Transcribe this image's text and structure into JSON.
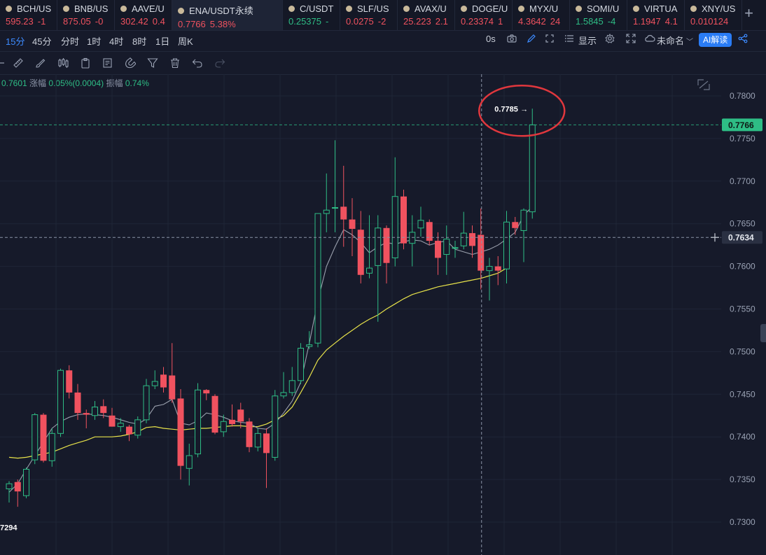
{
  "tickers": [
    {
      "symbol": "BCH/US",
      "price": "595.23",
      "change": "-1",
      "dir": "down"
    },
    {
      "symbol": "BNB/US",
      "price": "875.05",
      "change": "-0",
      "dir": "down"
    },
    {
      "symbol": "AAVE/U",
      "price": "302.42",
      "change": "0.4",
      "dir": "down"
    },
    {
      "symbol": "ENA/USDT永续",
      "price": "0.7766",
      "change": "5.38%",
      "dir": "down",
      "active": true
    },
    {
      "symbol": "C/USDT",
      "price": "0.25375",
      "change": "-",
      "dir": "up"
    },
    {
      "symbol": "SLF/US",
      "price": "0.0275",
      "change": "-2",
      "dir": "down"
    },
    {
      "symbol": "AVAX/U",
      "price": "25.223",
      "change": "2.1",
      "dir": "down"
    },
    {
      "symbol": "DOGE/U",
      "price": "0.23374",
      "change": "1",
      "dir": "down"
    },
    {
      "symbol": "MYX/U",
      "price": "4.3642",
      "change": "24",
      "dir": "down"
    },
    {
      "symbol": "SOMI/U",
      "price": "1.5845",
      "change": "-4",
      "dir": "up"
    },
    {
      "symbol": "VIRTUA",
      "price": "1.1947",
      "change": "4.1",
      "dir": "down"
    },
    {
      "symbol": "XNY/US",
      "price": "0.010124",
      "change": "",
      "dir": "down"
    }
  ],
  "intervals": [
    "15分",
    "45分",
    "分时",
    "1时",
    "4时",
    "8时",
    "1日",
    "周K"
  ],
  "selected_interval": "15分",
  "toolbar_right": {
    "countdown": "0s",
    "display": "显示",
    "layout_name": "未命名",
    "ai_label": "AI解读"
  },
  "info": {
    "prev": "0.7601",
    "change_label": "涨幅",
    "change_value": "0.05%(0.0004)",
    "amp_label": "振幅",
    "amp_value": "0.74%"
  },
  "chart_data": {
    "type": "candlestick",
    "symbol": "ENA/USDT",
    "interval": "15m",
    "y_ticks": [
      "0.7800",
      "0.7750",
      "0.7700",
      "0.7650",
      "0.7600",
      "0.7550",
      "0.7500",
      "0.7450",
      "0.7400",
      "0.7350",
      "0.7300"
    ],
    "ylim": [
      0.728,
      0.781
    ],
    "current_price": "0.7766",
    "crosshair_price": "0.7634",
    "high_label": "0.7785",
    "low_label": "7294",
    "colors": {
      "up": "#2ebd85",
      "down": "#f0525f",
      "ma_fast": "#9aa0ad",
      "ma_slow": "#e7e24a",
      "highlight": "#e0373d"
    },
    "candles": [
      {
        "o": 0.7339,
        "h": 0.7348,
        "l": 0.7323,
        "c": 0.7345
      },
      {
        "o": 0.7347,
        "h": 0.735,
        "l": 0.7318,
        "c": 0.7336
      },
      {
        "o": 0.7331,
        "h": 0.7364,
        "l": 0.7328,
        "c": 0.7362
      },
      {
        "o": 0.7373,
        "h": 0.7428,
        "l": 0.7368,
        "c": 0.7426
      },
      {
        "o": 0.7426,
        "h": 0.7428,
        "l": 0.737,
        "c": 0.7372
      },
      {
        "o": 0.7372,
        "h": 0.741,
        "l": 0.7365,
        "c": 0.7404
      },
      {
        "o": 0.7404,
        "h": 0.748,
        "l": 0.74,
        "c": 0.7478
      },
      {
        "o": 0.7478,
        "h": 0.7484,
        "l": 0.7445,
        "c": 0.7452
      },
      {
        "o": 0.7452,
        "h": 0.7462,
        "l": 0.742,
        "c": 0.7428
      },
      {
        "o": 0.7428,
        "h": 0.7432,
        "l": 0.741,
        "c": 0.7426
      },
      {
        "o": 0.7425,
        "h": 0.7442,
        "l": 0.742,
        "c": 0.7435
      },
      {
        "o": 0.7436,
        "h": 0.7444,
        "l": 0.7422,
        "c": 0.7428
      },
      {
        "o": 0.7425,
        "h": 0.7434,
        "l": 0.7412,
        "c": 0.7412
      },
      {
        "o": 0.7412,
        "h": 0.7422,
        "l": 0.7406,
        "c": 0.7416
      },
      {
        "o": 0.7412,
        "h": 0.7414,
        "l": 0.7395,
        "c": 0.7403
      },
      {
        "o": 0.7402,
        "h": 0.7424,
        "l": 0.7398,
        "c": 0.742
      },
      {
        "o": 0.742,
        "h": 0.7468,
        "l": 0.7416,
        "c": 0.746
      },
      {
        "o": 0.746,
        "h": 0.7478,
        "l": 0.7456,
        "c": 0.7465
      },
      {
        "o": 0.7473,
        "h": 0.7482,
        "l": 0.7452,
        "c": 0.7458
      },
      {
        "o": 0.7472,
        "h": 0.751,
        "l": 0.744,
        "c": 0.7444
      },
      {
        "o": 0.7445,
        "h": 0.7456,
        "l": 0.735,
        "c": 0.7366
      },
      {
        "o": 0.7363,
        "h": 0.7392,
        "l": 0.7343,
        "c": 0.7378
      },
      {
        "o": 0.738,
        "h": 0.7463,
        "l": 0.7376,
        "c": 0.7455
      },
      {
        "o": 0.7455,
        "h": 0.7456,
        "l": 0.7443,
        "c": 0.7451
      },
      {
        "o": 0.7448,
        "h": 0.745,
        "l": 0.7403,
        "c": 0.7405
      },
      {
        "o": 0.7406,
        "h": 0.7426,
        "l": 0.74,
        "c": 0.7418
      },
      {
        "o": 0.742,
        "h": 0.7438,
        "l": 0.7412,
        "c": 0.7415
      },
      {
        "o": 0.7432,
        "h": 0.744,
        "l": 0.741,
        "c": 0.7418
      },
      {
        "o": 0.7418,
        "h": 0.7422,
        "l": 0.7382,
        "c": 0.7388
      },
      {
        "o": 0.7388,
        "h": 0.741,
        "l": 0.7383,
        "c": 0.7404
      },
      {
        "o": 0.7404,
        "h": 0.741,
        "l": 0.734,
        "c": 0.7381
      },
      {
        "o": 0.7376,
        "h": 0.7455,
        "l": 0.7372,
        "c": 0.7448
      },
      {
        "o": 0.7448,
        "h": 0.7476,
        "l": 0.7445,
        "c": 0.7452
      },
      {
        "o": 0.7452,
        "h": 0.7482,
        "l": 0.7448,
        "c": 0.7466
      },
      {
        "o": 0.7466,
        "h": 0.751,
        "l": 0.7462,
        "c": 0.7504
      },
      {
        "o": 0.7506,
        "h": 0.7524,
        "l": 0.7503,
        "c": 0.7508
      },
      {
        "o": 0.751,
        "h": 0.766,
        "l": 0.7505,
        "c": 0.7662
      },
      {
        "o": 0.7662,
        "h": 0.7709,
        "l": 0.764,
        "c": 0.7666
      },
      {
        "o": 0.7669,
        "h": 0.7748,
        "l": 0.764,
        "c": 0.7669
      },
      {
        "o": 0.767,
        "h": 0.7718,
        "l": 0.7623,
        "c": 0.7655
      },
      {
        "o": 0.7655,
        "h": 0.768,
        "l": 0.7612,
        "c": 0.7644
      },
      {
        "o": 0.7643,
        "h": 0.7665,
        "l": 0.758,
        "c": 0.759
      },
      {
        "o": 0.7592,
        "h": 0.766,
        "l": 0.7586,
        "c": 0.7598
      },
      {
        "o": 0.7601,
        "h": 0.766,
        "l": 0.7535,
        "c": 0.7645
      },
      {
        "o": 0.7645,
        "h": 0.7648,
        "l": 0.758,
        "c": 0.7604
      },
      {
        "o": 0.761,
        "h": 0.7728,
        "l": 0.76,
        "c": 0.7682
      },
      {
        "o": 0.7682,
        "h": 0.769,
        "l": 0.762,
        "c": 0.7627
      },
      {
        "o": 0.7627,
        "h": 0.766,
        "l": 0.76,
        "c": 0.764
      },
      {
        "o": 0.7645,
        "h": 0.767,
        "l": 0.7635,
        "c": 0.7654
      },
      {
        "o": 0.7652,
        "h": 0.7655,
        "l": 0.7625,
        "c": 0.763
      },
      {
        "o": 0.763,
        "h": 0.764,
        "l": 0.759,
        "c": 0.761
      },
      {
        "o": 0.7614,
        "h": 0.7648,
        "l": 0.759,
        "c": 0.7632
      },
      {
        "o": 0.7622,
        "h": 0.763,
        "l": 0.761,
        "c": 0.7622
      },
      {
        "o": 0.7624,
        "h": 0.7664,
        "l": 0.762,
        "c": 0.7639
      },
      {
        "o": 0.7639,
        "h": 0.7648,
        "l": 0.761,
        "c": 0.7624
      },
      {
        "o": 0.7637,
        "h": 0.7668,
        "l": 0.7573,
        "c": 0.7595
      },
      {
        "o": 0.7595,
        "h": 0.761,
        "l": 0.756,
        "c": 0.76
      },
      {
        "o": 0.76,
        "h": 0.7612,
        "l": 0.7578,
        "c": 0.7595
      },
      {
        "o": 0.7597,
        "h": 0.7665,
        "l": 0.758,
        "c": 0.7652
      },
      {
        "o": 0.7652,
        "h": 0.7658,
        "l": 0.7637,
        "c": 0.7645
      },
      {
        "o": 0.7642,
        "h": 0.7668,
        "l": 0.7605,
        "c": 0.7666
      },
      {
        "o": 0.7664,
        "h": 0.7785,
        "l": 0.7656,
        "c": 0.7766
      }
    ],
    "ma_fast": [
      0.7335,
      0.7345,
      0.7362,
      0.7378,
      0.7394,
      0.741,
      0.7418,
      0.7423,
      0.7426,
      0.7427,
      0.7426,
      0.7425,
      0.7423,
      0.742,
      0.7417,
      0.7415,
      0.7421,
      0.7436,
      0.7438,
      0.7444,
      0.7416,
      0.7414,
      0.7419,
      0.7428,
      0.7426,
      0.7423,
      0.7419,
      0.7417,
      0.7416,
      0.741,
      0.7409,
      0.7416,
      0.7428,
      0.7442,
      0.7464,
      0.751,
      0.756,
      0.76,
      0.7623,
      0.7643,
      0.7637,
      0.7628,
      0.7616,
      0.7623,
      0.7628,
      0.7626,
      0.7629,
      0.7631,
      0.763,
      0.7625,
      0.7628,
      0.763,
      0.762,
      0.7617,
      0.7614,
      0.7617,
      0.762,
      0.7625,
      0.7632,
      0.764,
      0.766,
      0.767
    ],
    "ma_slow": [
      0.7376,
      0.7375,
      0.7376,
      0.7378,
      0.738,
      0.7382,
      0.7386,
      0.739,
      0.7393,
      0.7396,
      0.74,
      0.74,
      0.74,
      0.7401,
      0.7403,
      0.7406,
      0.7411,
      0.7412,
      0.741,
      0.7409,
      0.7408,
      0.7409,
      0.741,
      0.741,
      0.7411,
      0.7412,
      0.7413,
      0.7413,
      0.7412,
      0.7412,
      0.7415,
      0.742,
      0.7425,
      0.7435,
      0.7452,
      0.747,
      0.749,
      0.7502,
      0.751,
      0.7518,
      0.7525,
      0.7532,
      0.7538,
      0.7543,
      0.755,
      0.7556,
      0.7562,
      0.7567,
      0.757,
      0.7573,
      0.7576,
      0.7578,
      0.758,
      0.7582,
      0.7584,
      0.7586,
      0.7589,
      0.7592,
      0.7598
    ]
  }
}
